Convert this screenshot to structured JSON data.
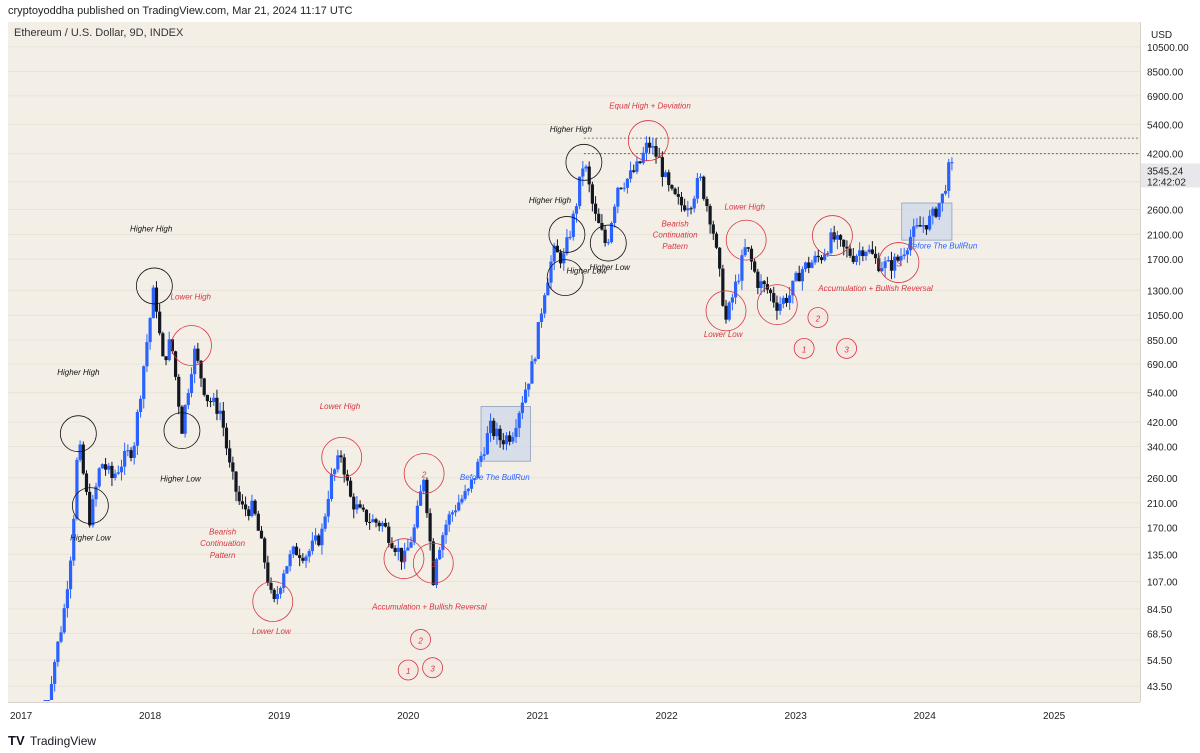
{
  "header": {
    "publisher_line": "cryptoyoddha published on TradingView.com, Mar 21, 2024 11:17 UTC"
  },
  "symbol_line": "Ethereum / U.S. Dollar, 9D, INDEX",
  "price_axis": {
    "currency": "USD",
    "ticks": [
      "10500.00",
      "8500.00",
      "6900.00",
      "5400.00",
      "4200.00",
      "3300.00",
      "2600.00",
      "2100.00",
      "1700.00",
      "1300.00",
      "1050.00",
      "850.00",
      "690.00",
      "540.00",
      "420.00",
      "340.00",
      "260.00",
      "210.00",
      "170.00",
      "135.00",
      "107.00",
      "84.50",
      "68.50",
      "54.50",
      "43.50"
    ],
    "current_price": "3545.24",
    "countdown": "12:42:02"
  },
  "time_axis": {
    "ticks": [
      "2017",
      "2018",
      "2019",
      "2020",
      "2021",
      "2022",
      "2023",
      "2024",
      "2025"
    ]
  },
  "footer": {
    "brand": "TradingView"
  },
  "colors": {
    "up": "#2962ff",
    "down": "#131722",
    "annotation_red": "#d8343f",
    "box_fill": "#c9d4ea",
    "background": "#f3efe7"
  },
  "chart_data": {
    "type": "candlestick",
    "title": "Ethereum / U.S. Dollar, 9D, INDEX",
    "scale": "log",
    "ylim": [
      38,
      13000
    ],
    "xlim": [
      "2016-11-25",
      "2025-09-01"
    ],
    "price_path": [
      [
        "2017-03-01",
        18
      ],
      [
        "2017-03-25",
        45
      ],
      [
        "2017-05-01",
        80
      ],
      [
        "2017-05-25",
        150
      ],
      [
        "2017-06-12",
        360
      ],
      [
        "2017-07-15",
        180
      ],
      [
        "2017-08-15",
        300
      ],
      [
        "2017-09-15",
        260
      ],
      [
        "2017-10-15",
        300
      ],
      [
        "2017-11-15",
        340
      ],
      [
        "2017-12-15",
        700
      ],
      [
        "2018-01-13",
        1350
      ],
      [
        "2018-02-05",
        700
      ],
      [
        "2018-03-01",
        850
      ],
      [
        "2018-04-01",
        400
      ],
      [
        "2018-05-05",
        780
      ],
      [
        "2018-06-10",
        520
      ],
      [
        "2018-07-20",
        460
      ],
      [
        "2018-08-15",
        280
      ],
      [
        "2018-09-15",
        200
      ],
      [
        "2018-10-20",
        200
      ],
      [
        "2018-11-20",
        130
      ],
      [
        "2018-12-15",
        85
      ],
      [
        "2019-01-15",
        120
      ],
      [
        "2019-02-15",
        140
      ],
      [
        "2019-03-20",
        135
      ],
      [
        "2019-05-01",
        160
      ],
      [
        "2019-05-25",
        250
      ],
      [
        "2019-06-26",
        320
      ],
      [
        "2019-07-20",
        220
      ],
      [
        "2019-08-20",
        190
      ],
      [
        "2019-09-20",
        180
      ],
      [
        "2019-10-20",
        175
      ],
      [
        "2019-11-20",
        150
      ],
      [
        "2019-12-20",
        128
      ],
      [
        "2020-01-20",
        170
      ],
      [
        "2020-02-15",
        270
      ],
      [
        "2020-03-12",
        110
      ],
      [
        "2020-03-20",
        135
      ],
      [
        "2020-04-20",
        180
      ],
      [
        "2020-05-20",
        210
      ],
      [
        "2020-06-20",
        230
      ],
      [
        "2020-07-20",
        300
      ],
      [
        "2020-08-20",
        400
      ],
      [
        "2020-09-20",
        360
      ],
      [
        "2020-10-20",
        380
      ],
      [
        "2020-11-20",
        520
      ],
      [
        "2020-12-20",
        700
      ],
      [
        "2021-01-20",
        1300
      ],
      [
        "2021-02-15",
        1800
      ],
      [
        "2021-03-15",
        1700
      ],
      [
        "2021-04-15",
        2500
      ],
      [
        "2021-05-12",
        4000
      ],
      [
        "2021-06-10",
        2500
      ],
      [
        "2021-07-15",
        1900
      ],
      [
        "2021-08-15",
        3200
      ],
      [
        "2021-09-15",
        3400
      ],
      [
        "2021-10-15",
        3800
      ],
      [
        "2021-11-10",
        4600
      ],
      [
        "2021-12-10",
        4000
      ],
      [
        "2022-01-10",
        3000
      ],
      [
        "2022-02-10",
        2700
      ],
      [
        "2022-03-10",
        2800
      ],
      [
        "2022-04-05",
        3400
      ],
      [
        "2022-05-10",
        2300
      ],
      [
        "2022-06-18",
        1000
      ],
      [
        "2022-07-15",
        1350
      ],
      [
        "2022-08-14",
        1900
      ],
      [
        "2022-09-15",
        1400
      ],
      [
        "2022-10-15",
        1300
      ],
      [
        "2022-11-10",
        1150
      ],
      [
        "2022-12-15",
        1250
      ],
      [
        "2023-01-15",
        1550
      ],
      [
        "2023-02-15",
        1650
      ],
      [
        "2023-03-15",
        1750
      ],
      [
        "2023-04-15",
        2050
      ],
      [
        "2023-05-15",
        1850
      ],
      [
        "2023-06-15",
        1750
      ],
      [
        "2023-07-15",
        1900
      ],
      [
        "2023-08-20",
        1650
      ],
      [
        "2023-09-20",
        1600
      ],
      [
        "2023-10-20",
        1700
      ],
      [
        "2023-11-20",
        2050
      ],
      [
        "2023-12-20",
        2250
      ],
      [
        "2024-01-20",
        2400
      ],
      [
        "2024-02-20",
        2900
      ],
      [
        "2024-03-14",
        3900
      ],
      [
        "2024-03-21",
        3545
      ]
    ],
    "last_price": 3545.24,
    "horizontal_levels": [
      4200,
      4800
    ],
    "annotations": [
      {
        "text": "Higher High",
        "style": "black",
        "date": "2017-06-12",
        "price": 630
      },
      {
        "text": "Higher Low",
        "style": "black",
        "date": "2017-07-16",
        "price": 152
      },
      {
        "text": "Higher High",
        "style": "black",
        "date": "2018-01-04",
        "price": 2150
      },
      {
        "text": "Lower High",
        "style": "red",
        "date": "2018-04-26",
        "price": 1200
      },
      {
        "text": "Higher Low",
        "style": "black",
        "date": "2018-03-28",
        "price": 252
      },
      {
        "text": "Bearish",
        "style": "red",
        "date": "2018-07-25",
        "price": 160
      },
      {
        "text": "Continuation",
        "style": "red",
        "date": "2018-07-25",
        "price": 145
      },
      {
        "text": "Pattern",
        "style": "red",
        "date": "2018-07-25",
        "price": 131
      },
      {
        "text": "Lower Low",
        "style": "red",
        "date": "2018-12-10",
        "price": 68
      },
      {
        "text": "Lower High",
        "style": "red",
        "date": "2019-06-22",
        "price": 470
      },
      {
        "text": "Accumulation + Bullish Reversal",
        "style": "red",
        "date": "2020-03-01",
        "price": 84
      },
      {
        "text": "Before The BullRun",
        "style": "blue",
        "date": "2020-09-02",
        "price": 255
      },
      {
        "text": "Higher High",
        "style": "black",
        "date": "2021-04-05",
        "price": 5050
      },
      {
        "text": "Higher High",
        "style": "black",
        "date": "2021-02-05",
        "price": 2750
      },
      {
        "text": "Higher Low",
        "style": "black",
        "date": "2021-05-20",
        "price": 1500
      },
      {
        "text": "Higher Low",
        "style": "black",
        "date": "2021-07-24",
        "price": 1550
      },
      {
        "text": "Equal High + Deviation",
        "style": "red",
        "date": "2021-11-15",
        "price": 6200
      },
      {
        "text": "Bearish",
        "style": "red",
        "date": "2022-01-25",
        "price": 2250
      },
      {
        "text": "Continuation",
        "style": "red",
        "date": "2022-01-25",
        "price": 2050
      },
      {
        "text": "Pattern",
        "style": "red",
        "date": "2022-01-25",
        "price": 1850
      },
      {
        "text": "Lower High",
        "style": "red",
        "date": "2022-08-10",
        "price": 2600
      },
      {
        "text": "Lower Low",
        "style": "red",
        "date": "2022-06-10",
        "price": 870
      },
      {
        "text": "Accumulation + Bullish Reversal",
        "style": "red",
        "date": "2023-08-15",
        "price": 1290
      },
      {
        "text": "Before The BullRun",
        "style": "blue",
        "date": "2024-02-20",
        "price": 1860
      }
    ],
    "circles": [
      {
        "date": "2017-06-12",
        "price": 380,
        "color": "black"
      },
      {
        "date": "2017-07-16",
        "price": 205,
        "color": "black"
      },
      {
        "date": "2018-01-13",
        "price": 1350,
        "color": "black"
      },
      {
        "date": "2018-04-28",
        "price": 810,
        "color": "red"
      },
      {
        "date": "2018-04-01",
        "price": 390,
        "color": "black"
      },
      {
        "date": "2018-12-14",
        "price": 90,
        "color": "red"
      },
      {
        "date": "2019-06-27",
        "price": 310,
        "color": "red"
      },
      {
        "date": "2019-12-20",
        "price": 130,
        "color": "red",
        "label": "1"
      },
      {
        "date": "2020-02-15",
        "price": 270,
        "color": "red",
        "label": "2"
      },
      {
        "date": "2020-03-12",
        "price": 125,
        "color": "red",
        "label": "3"
      },
      {
        "date": "2021-05-12",
        "price": 3900,
        "color": "black"
      },
      {
        "date": "2021-03-25",
        "price": 2100,
        "color": "black"
      },
      {
        "date": "2021-03-20",
        "price": 1450,
        "color": "black"
      },
      {
        "date": "2021-07-20",
        "price": 1950,
        "color": "black"
      },
      {
        "date": "2021-11-10",
        "price": 4700,
        "color": "red"
      },
      {
        "date": "2022-06-18",
        "price": 1090,
        "color": "red"
      },
      {
        "date": "2022-08-14",
        "price": 2000,
        "color": "red"
      },
      {
        "date": "2022-11-10",
        "price": 1150,
        "color": "red"
      },
      {
        "date": "2023-04-15",
        "price": 2080,
        "color": "red",
        "label": "2"
      },
      {
        "date": "2023-10-20",
        "price": 1650,
        "color": "red",
        "label": "3"
      }
    ],
    "boxes": [
      {
        "from": "2020-07-25",
        "to": "2020-12-12",
        "low": 300,
        "high": 480
      },
      {
        "from": "2023-10-28",
        "to": "2024-03-18",
        "low": 2000,
        "high": 2750
      }
    ],
    "pattern_numbers": [
      {
        "label": "1",
        "date": "2020-01-01",
        "price": 50
      },
      {
        "label": "2",
        "date": "2020-02-05",
        "price": 65
      },
      {
        "label": "3",
        "date": "2020-03-10",
        "price": 51
      },
      {
        "label": "1",
        "date": "2023-01-25",
        "price": 790
      },
      {
        "label": "2",
        "date": "2023-03-05",
        "price": 1030
      },
      {
        "label": "3",
        "date": "2023-05-25",
        "price": 790
      }
    ]
  }
}
